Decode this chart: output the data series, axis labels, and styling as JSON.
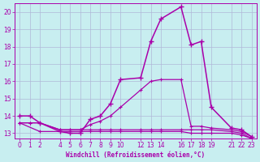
{
  "background_color": "#c8eef0",
  "grid_color": "#b0b8d8",
  "line_color": "#aa00aa",
  "xlabel": "Windchill (Refroidissement éolien,°C)",
  "xlim": [
    -0.5,
    23.5
  ],
  "ylim": [
    12.7,
    20.5
  ],
  "xticks": [
    0,
    1,
    2,
    4,
    5,
    6,
    7,
    8,
    9,
    10,
    12,
    13,
    14,
    16,
    17,
    18,
    19,
    21,
    22,
    23
  ],
  "yticks": [
    13,
    14,
    15,
    16,
    17,
    18,
    19,
    20
  ],
  "line1": {
    "x": [
      0,
      1,
      2,
      4,
      5,
      6,
      7,
      8,
      9,
      10,
      12,
      13,
      14,
      16,
      17,
      18,
      19,
      21,
      22,
      23
    ],
    "y": [
      14.0,
      14.0,
      13.6,
      13.1,
      13.0,
      13.0,
      13.8,
      14.0,
      14.7,
      16.1,
      16.2,
      18.3,
      19.6,
      20.3,
      18.1,
      18.3,
      14.5,
      13.3,
      13.2,
      12.8
    ]
  },
  "line2": {
    "x": [
      0,
      1,
      2,
      4,
      5,
      6,
      7,
      8,
      9,
      10,
      12,
      13,
      14,
      16,
      17,
      18,
      19,
      21,
      22,
      23
    ],
    "y": [
      13.6,
      13.6,
      13.6,
      13.2,
      13.2,
      13.2,
      13.5,
      13.7,
      14.0,
      14.5,
      15.5,
      16.0,
      16.1,
      16.1,
      13.4,
      13.4,
      13.3,
      13.2,
      13.1,
      12.8
    ]
  },
  "line3": {
    "x": [
      0,
      1,
      2,
      4,
      5,
      6,
      7,
      8,
      9,
      10,
      12,
      13,
      14,
      16,
      17,
      18,
      19,
      21,
      22,
      23
    ],
    "y": [
      13.6,
      13.6,
      13.6,
      13.2,
      13.2,
      13.2,
      13.2,
      13.2,
      13.2,
      13.2,
      13.2,
      13.2,
      13.2,
      13.2,
      13.2,
      13.2,
      13.2,
      13.1,
      13.0,
      12.7
    ]
  },
  "line4": {
    "x": [
      0,
      2,
      4,
      5,
      6,
      7,
      8,
      9,
      10,
      12,
      13,
      14,
      16,
      17,
      18,
      19,
      21,
      22,
      23
    ],
    "y": [
      13.6,
      13.1,
      13.1,
      13.1,
      13.1,
      13.1,
      13.1,
      13.1,
      13.1,
      13.1,
      13.1,
      13.1,
      13.1,
      13.0,
      13.0,
      13.0,
      13.0,
      12.9,
      12.7
    ]
  }
}
